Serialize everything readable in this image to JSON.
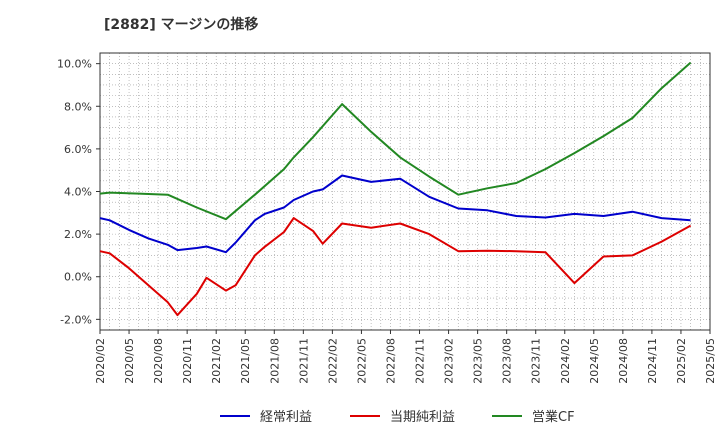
{
  "chart_data": {
    "type": "line",
    "title": "[2882]  マージンの推移",
    "xlabel": "",
    "ylabel": "",
    "x_ticks": [
      "2020/02",
      "2020/05",
      "2020/08",
      "2020/11",
      "2021/02",
      "2021/05",
      "2021/08",
      "2021/11",
      "2022/02",
      "2022/05",
      "2022/08",
      "2022/11",
      "2023/02",
      "2023/05",
      "2023/08",
      "2023/11",
      "2024/02",
      "2024/05",
      "2024/08",
      "2024/11",
      "2025/02",
      "2025/05"
    ],
    "y_ticks": [
      -2.0,
      0.0,
      2.0,
      4.0,
      6.0,
      8.0,
      10.0
    ],
    "y_tick_labels": [
      "-2.0%",
      "0.0%",
      "2.0%",
      "4.0%",
      "6.0%",
      "8.0%",
      "10.0%"
    ],
    "ylim": [
      -2.5,
      10.5
    ],
    "grid": true,
    "legend_position": "bottom",
    "series": [
      {
        "name": "経常利益",
        "color": "#0000cc",
        "points": [
          [
            "2020/02",
            2.75
          ],
          [
            "2020/03",
            2.65
          ],
          [
            "2020/05",
            2.2
          ],
          [
            "2020/07",
            1.8
          ],
          [
            "2020/09",
            1.5
          ],
          [
            "2020/10",
            1.25
          ],
          [
            "2020/12",
            1.35
          ],
          [
            "2021/01",
            1.42
          ],
          [
            "2021/03",
            1.15
          ],
          [
            "2021/04",
            1.6
          ],
          [
            "2021/06",
            2.65
          ],
          [
            "2021/07",
            2.95
          ],
          [
            "2021/09",
            3.25
          ],
          [
            "2021/10",
            3.6
          ],
          [
            "2021/12",
            4.0
          ],
          [
            "2022/01",
            4.1
          ],
          [
            "2022/03",
            4.75
          ],
          [
            "2022/06",
            4.45
          ],
          [
            "2022/09",
            4.6
          ],
          [
            "2022/12",
            3.75
          ],
          [
            "2023/03",
            3.2
          ],
          [
            "2023/06",
            3.12
          ],
          [
            "2023/09",
            2.85
          ],
          [
            "2023/12",
            2.78
          ],
          [
            "2024/03",
            2.95
          ],
          [
            "2024/06",
            2.85
          ],
          [
            "2024/09",
            3.05
          ],
          [
            "2024/12",
            2.75
          ],
          [
            "2025/03",
            2.65
          ]
        ]
      },
      {
        "name": "当期純利益",
        "color": "#dd0000",
        "points": [
          [
            "2020/02",
            1.2
          ],
          [
            "2020/03",
            1.1
          ],
          [
            "2020/05",
            0.4
          ],
          [
            "2020/07",
            -0.4
          ],
          [
            "2020/09",
            -1.2
          ],
          [
            "2020/10",
            -1.8
          ],
          [
            "2020/12",
            -0.8
          ],
          [
            "2021/01",
            -0.05
          ],
          [
            "2021/03",
            -0.65
          ],
          [
            "2021/04",
            -0.4
          ],
          [
            "2021/06",
            1.0
          ],
          [
            "2021/07",
            1.4
          ],
          [
            "2021/09",
            2.1
          ],
          [
            "2021/10",
            2.75
          ],
          [
            "2021/12",
            2.15
          ],
          [
            "2022/01",
            1.55
          ],
          [
            "2022/03",
            2.5
          ],
          [
            "2022/06",
            2.3
          ],
          [
            "2022/09",
            2.5
          ],
          [
            "2022/12",
            2.0
          ],
          [
            "2023/03",
            1.2
          ],
          [
            "2023/06",
            1.22
          ],
          [
            "2023/09",
            1.2
          ],
          [
            "2023/12",
            1.15
          ],
          [
            "2024/03",
            -0.3
          ],
          [
            "2024/06",
            0.95
          ],
          [
            "2024/09",
            1.0
          ],
          [
            "2024/12",
            1.65
          ],
          [
            "2025/03",
            2.4
          ]
        ]
      },
      {
        "name": "営業CF",
        "color": "#228822",
        "points": [
          [
            "2020/02",
            3.9
          ],
          [
            "2020/03",
            3.95
          ],
          [
            "2020/06",
            3.9
          ],
          [
            "2020/09",
            3.85
          ],
          [
            "2020/12",
            3.25
          ],
          [
            "2021/03",
            2.7
          ],
          [
            "2021/06",
            3.85
          ],
          [
            "2021/09",
            5.05
          ],
          [
            "2021/10",
            5.6
          ],
          [
            "2021/12",
            6.55
          ],
          [
            "2022/03",
            8.1
          ],
          [
            "2022/06",
            6.8
          ],
          [
            "2022/09",
            5.6
          ],
          [
            "2022/12",
            4.7
          ],
          [
            "2023/03",
            3.85
          ],
          [
            "2023/06",
            4.15
          ],
          [
            "2023/09",
            4.4
          ],
          [
            "2023/12",
            5.05
          ],
          [
            "2024/03",
            5.8
          ],
          [
            "2024/06",
            6.6
          ],
          [
            "2024/09",
            7.45
          ],
          [
            "2024/12",
            8.85
          ],
          [
            "2025/03",
            10.05
          ]
        ]
      }
    ]
  }
}
